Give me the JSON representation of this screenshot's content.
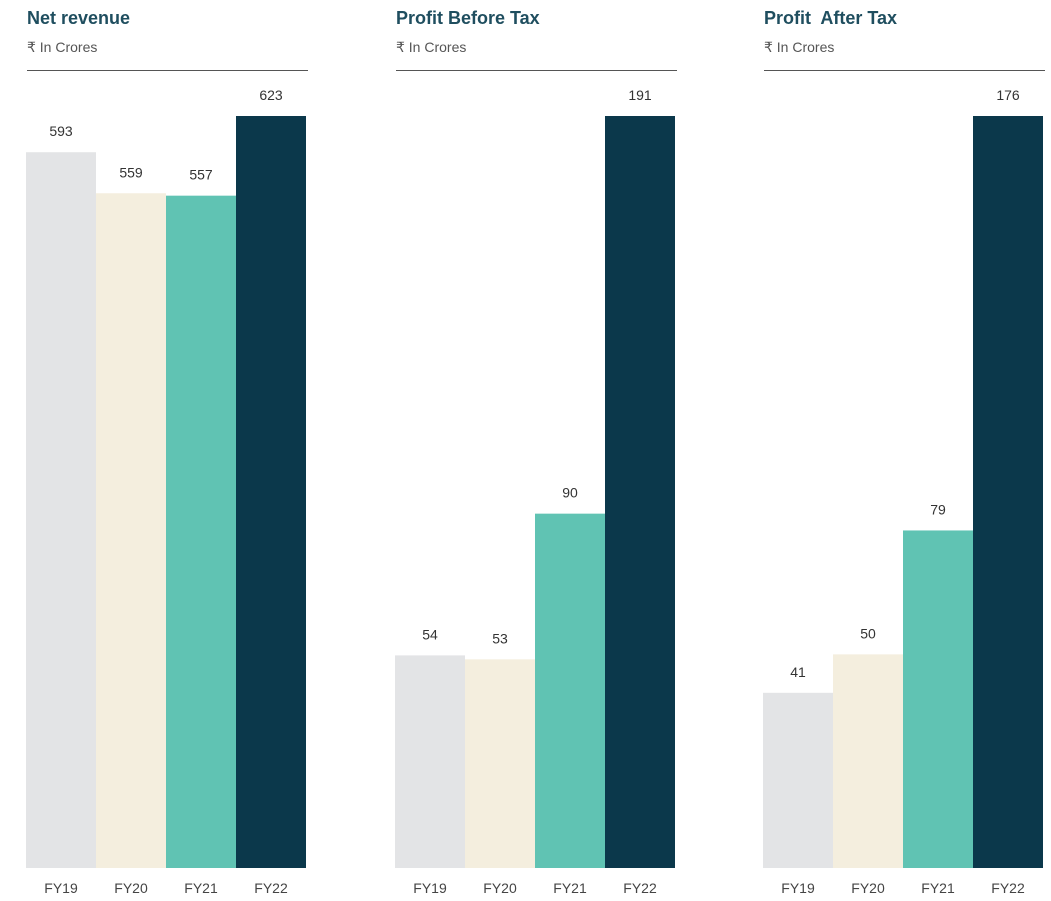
{
  "chart_data": [
    {
      "type": "bar",
      "title": "Net revenue",
      "subtitle": "₹ In Crores",
      "categories": [
        "FY19",
        "FY20",
        "FY21",
        "FY22"
      ],
      "values": [
        593,
        559,
        557,
        623
      ],
      "value_labels": [
        "593",
        "559",
        "557",
        "623"
      ],
      "colors": [
        "#e3e4e6",
        "#f4eede",
        "#60c3b3",
        "#0b384b"
      ],
      "ylim": [
        0,
        623
      ],
      "grid": false,
      "legend": "none"
    },
    {
      "type": "bar",
      "title": "Profit Before Tax",
      "subtitle": "₹ In Crores",
      "categories": [
        "FY19",
        "FY20",
        "FY21",
        "FY22"
      ],
      "values": [
        54,
        53,
        90,
        191
      ],
      "value_labels": [
        "54",
        "53",
        "90",
        "191"
      ],
      "colors": [
        "#e3e4e6",
        "#f4eede",
        "#60c3b3",
        "#0b384b"
      ],
      "ylim": [
        0,
        191
      ],
      "grid": false,
      "legend": "none"
    },
    {
      "type": "bar",
      "title": "Profit  After Tax",
      "subtitle": "₹ In Crores",
      "categories": [
        "FY19",
        "FY20",
        "FY21",
        "FY22"
      ],
      "values": [
        41,
        50,
        79,
        176
      ],
      "value_labels": [
        "41",
        "50",
        "79",
        "176"
      ],
      "colors": [
        "#e3e4e6",
        "#f4eede",
        "#60c3b3",
        "#0b384b"
      ],
      "ylim": [
        0,
        176
      ],
      "grid": false,
      "legend": "none"
    }
  ]
}
